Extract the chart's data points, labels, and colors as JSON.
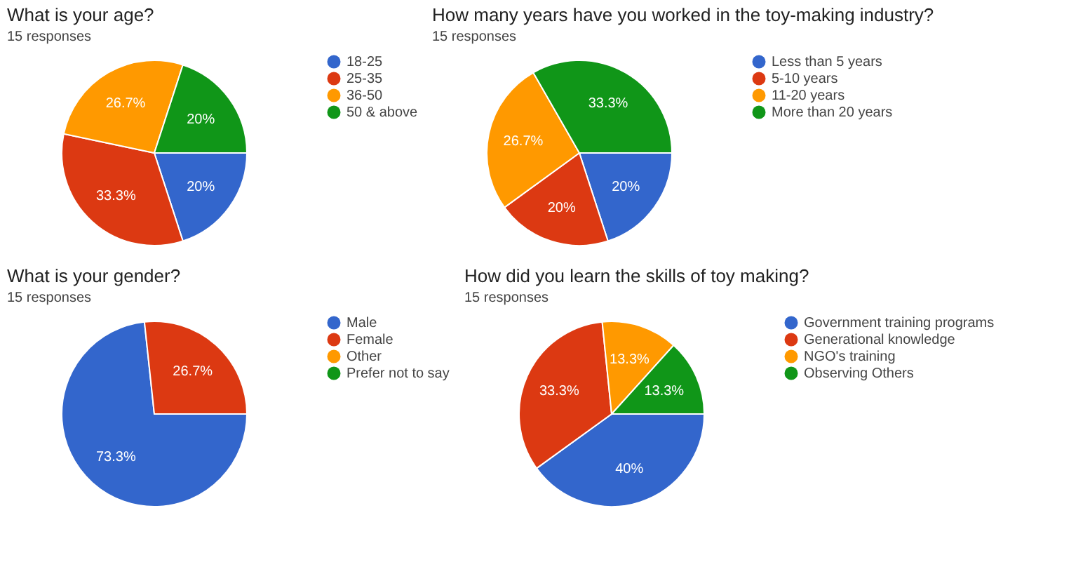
{
  "chart_data": [
    {
      "type": "pie",
      "title": "What is your age?",
      "subtitle": "15 responses",
      "categories": [
        "18-25",
        "25-35",
        "36-50",
        "50 & above"
      ],
      "values": [
        20,
        33.3,
        26.7,
        20
      ],
      "colors": [
        "#3366cc",
        "#dc3912",
        "#ff9900",
        "#109618"
      ],
      "value_labels": [
        "20%",
        "33.3%",
        "26.7%",
        "20%"
      ],
      "legend": "right"
    },
    {
      "type": "pie",
      "title": "How many years have you worked in the toy-making industry?",
      "subtitle": "15 responses",
      "categories": [
        "Less than 5 years",
        "5-10 years",
        "11-20 years",
        "More than 20 years"
      ],
      "values": [
        20,
        20,
        26.7,
        33.3
      ],
      "colors": [
        "#3366cc",
        "#dc3912",
        "#ff9900",
        "#109618"
      ],
      "value_labels": [
        "20%",
        "20%",
        "26.7%",
        "33.3%"
      ],
      "legend": "right"
    },
    {
      "type": "pie",
      "title": "What is your gender?",
      "subtitle": "15 responses",
      "categories": [
        "Male",
        "Female",
        "Other",
        "Prefer not to say"
      ],
      "values": [
        73.3,
        26.7,
        0,
        0
      ],
      "colors": [
        "#3366cc",
        "#dc3912",
        "#ff9900",
        "#109618"
      ],
      "value_labels": [
        "73.3%",
        "26.7%",
        null,
        null
      ],
      "legend": "right"
    },
    {
      "type": "pie",
      "title": "How did you learn the skills of toy making?",
      "subtitle": "15 responses",
      "categories": [
        "Government training programs",
        "Generational knowledge",
        "NGO's training",
        "Observing Others"
      ],
      "values": [
        40,
        33.3,
        13.3,
        13.3
      ],
      "colors": [
        "#3366cc",
        "#dc3912",
        "#ff9900",
        "#109618"
      ],
      "value_labels": [
        "40%",
        "33.3%",
        "13.3%",
        "13.3%"
      ],
      "legend": "right"
    }
  ]
}
